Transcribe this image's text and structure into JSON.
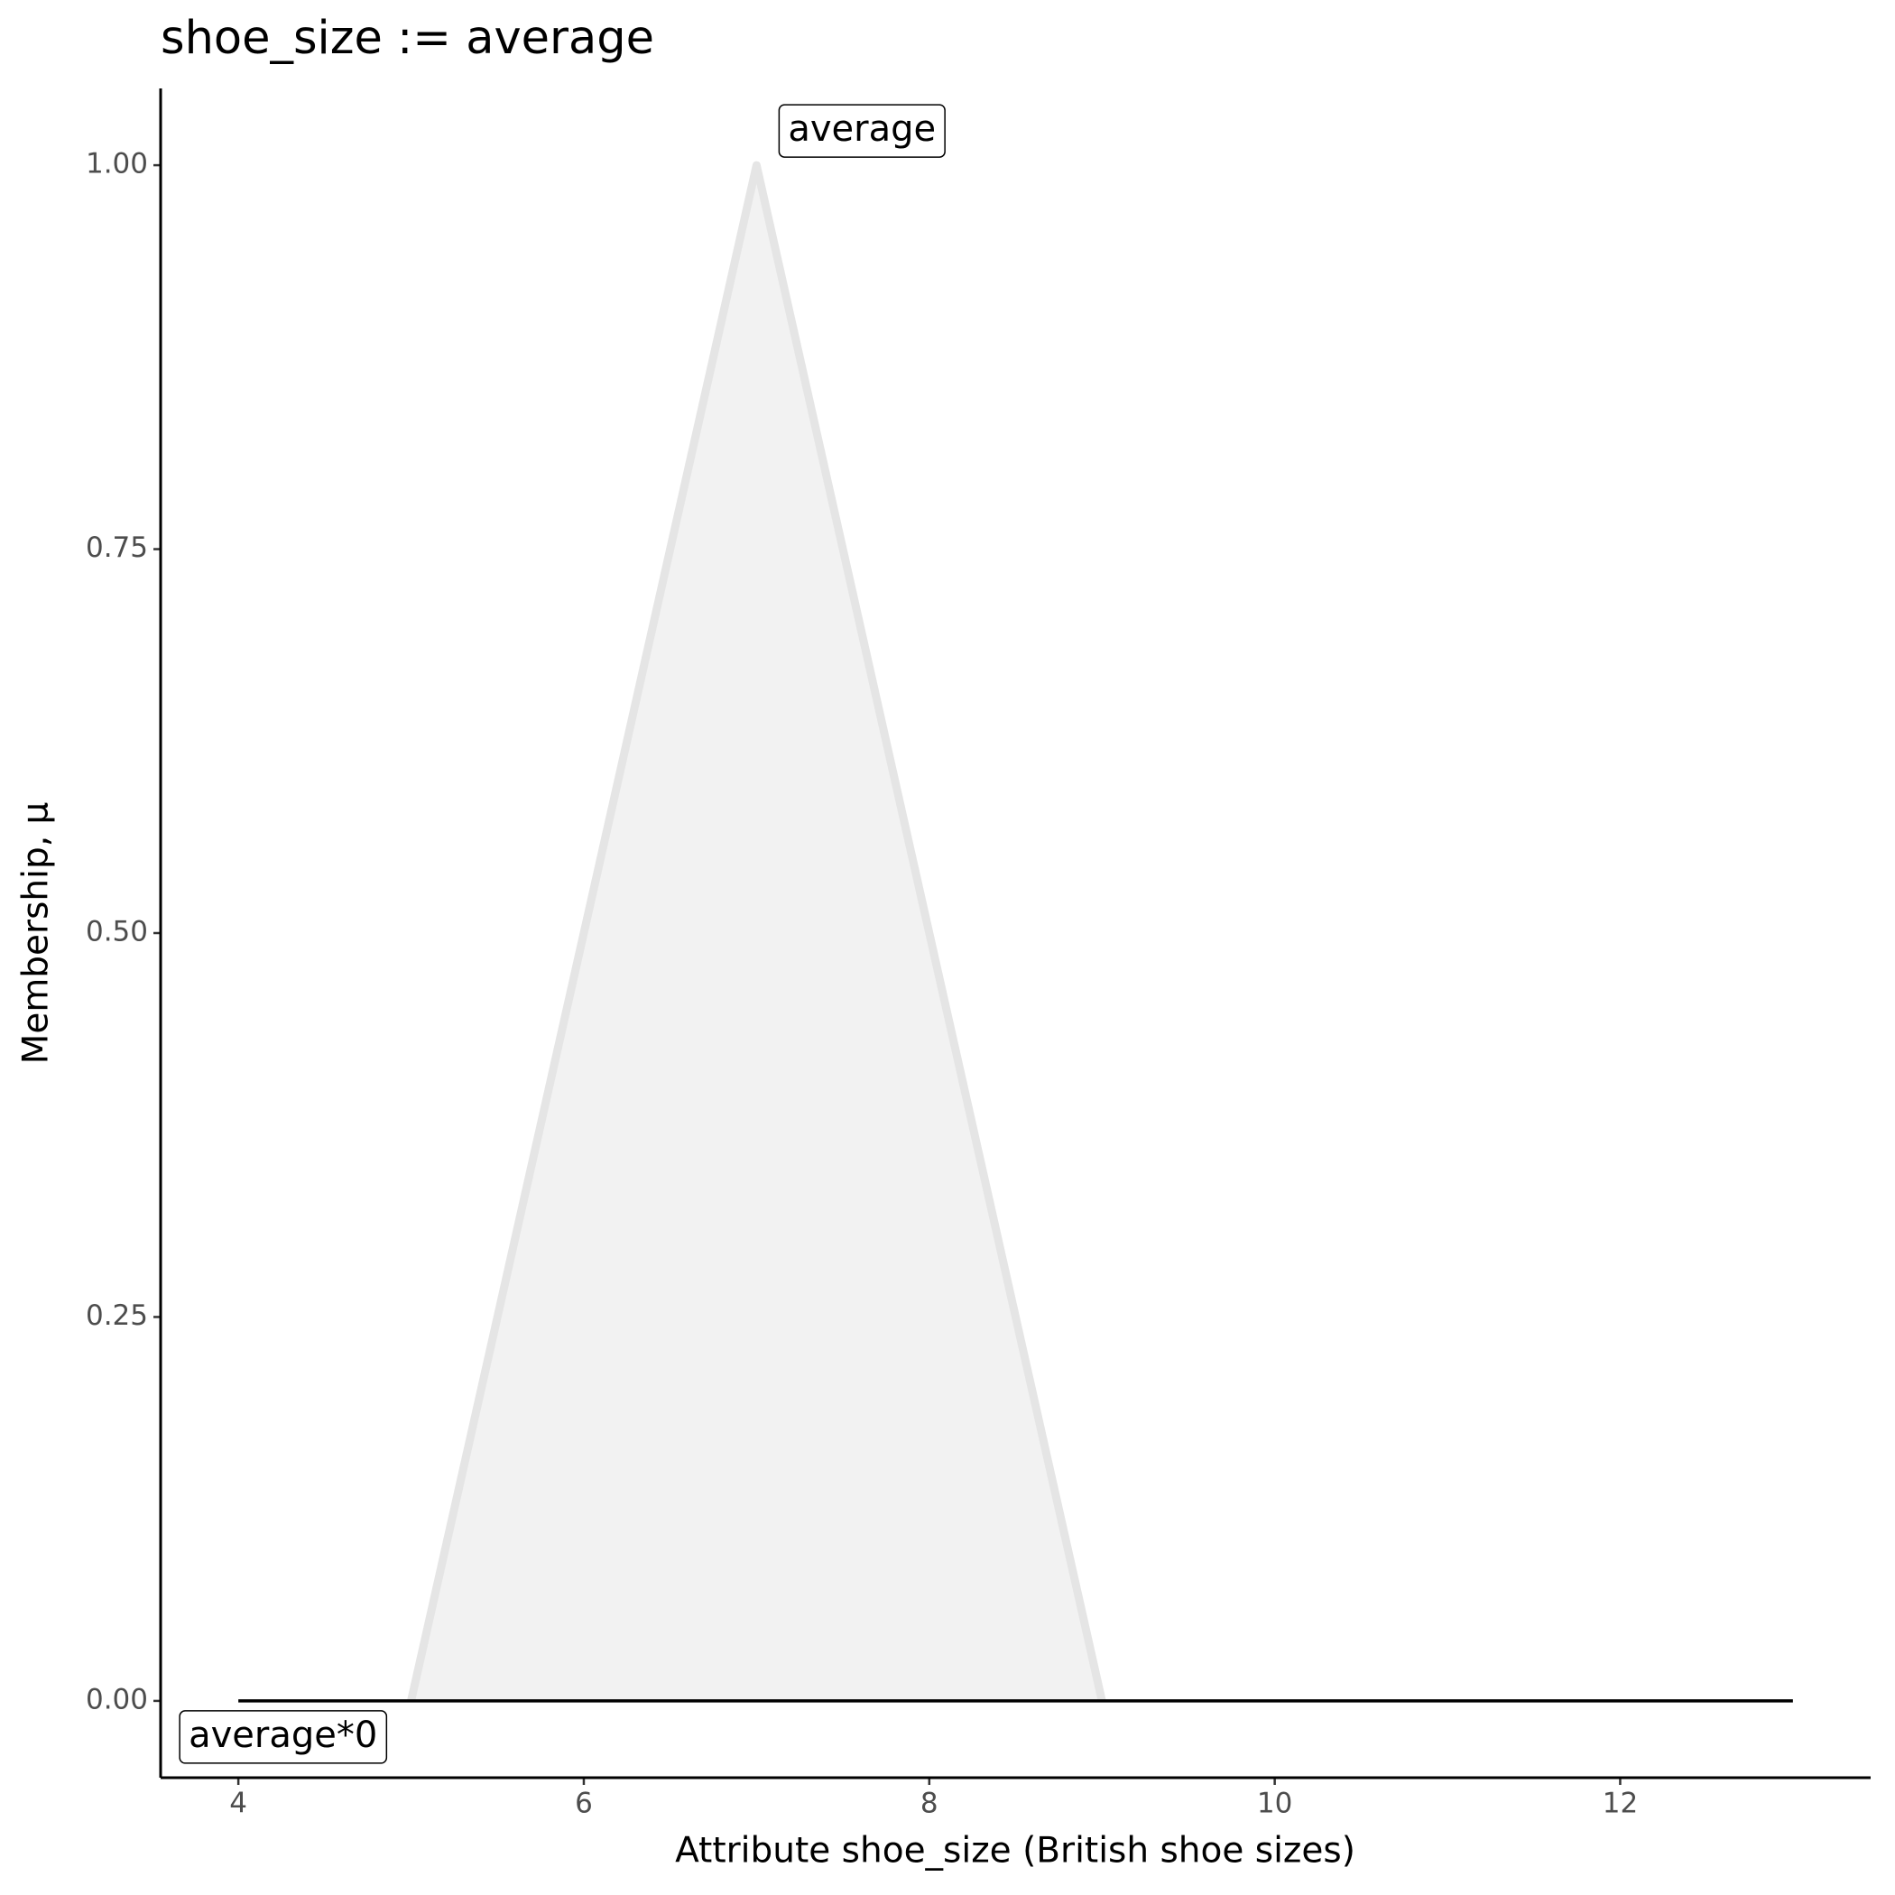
{
  "chart_data": {
    "type": "line",
    "title": "shoe_size := average",
    "xlabel": "Attribute shoe_size (British shoe sizes)",
    "ylabel": "Membership, μ",
    "series": [
      {
        "name": "average",
        "color": "#e5e5e5",
        "fill": "#f2f2f2",
        "x": [
          5,
          7,
          9
        ],
        "values": [
          0,
          1,
          0
        ]
      },
      {
        "name": "average*0",
        "color": "#000000",
        "x": [
          4,
          13
        ],
        "values": [
          0,
          0
        ]
      }
    ],
    "xlim": [
      3.55,
      13.45
    ],
    "ylim": [
      -0.05,
      1.05
    ],
    "xticks": [
      4,
      6,
      8,
      10,
      12
    ],
    "yticks": [
      {
        "value": 0,
        "label": "0.00"
      },
      {
        "value": 0.25,
        "label": "0.25"
      },
      {
        "value": 0.5,
        "label": "0.50"
      },
      {
        "value": 0.75,
        "label": "0.75"
      },
      {
        "value": 1,
        "label": "1.00"
      }
    ],
    "grid": false
  }
}
